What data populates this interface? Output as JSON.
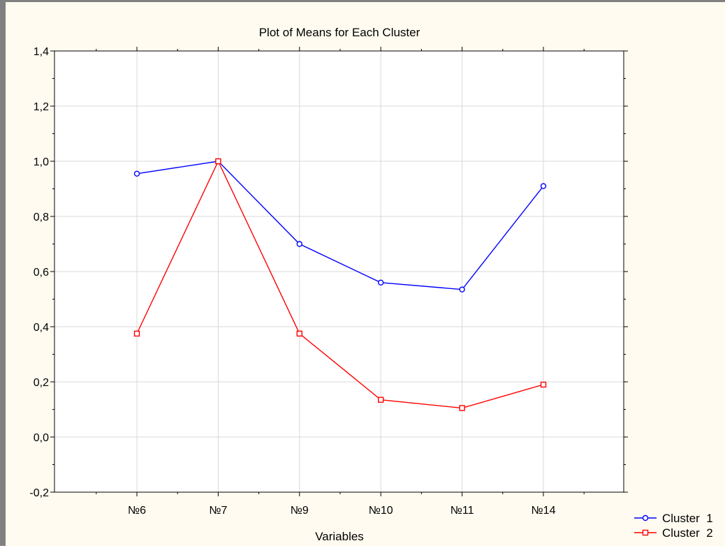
{
  "chart_data": {
    "type": "line",
    "title": "Plot of Means for Each Cluster",
    "xlabel": "Variables",
    "ylabel": "",
    "categories": [
      "№6",
      "№7",
      "№9",
      "№10",
      "№11",
      "№14"
    ],
    "ylim": [
      -0.2,
      1.4
    ],
    "yticks": [
      "-0,2",
      "0,0",
      "0,2",
      "0,4",
      "0,6",
      "0,8",
      "1,0",
      "1,2",
      "1,4"
    ],
    "ytick_values": [
      -0.2,
      0,
      0.2,
      0.4,
      0.6,
      0.8,
      1.0,
      1.2,
      1.4
    ],
    "grid": true,
    "legend_position": "bottom-right",
    "series": [
      {
        "name": "Cluster  1",
        "values": [
          0.955,
          1.0,
          0.7,
          0.56,
          0.535,
          0.91
        ],
        "color": "#0000ff",
        "marker": "circle"
      },
      {
        "name": "Cluster  2",
        "values": [
          0.375,
          1.0,
          0.375,
          0.135,
          0.105,
          0.19
        ],
        "color": "#ff0000",
        "marker": "square"
      }
    ]
  }
}
